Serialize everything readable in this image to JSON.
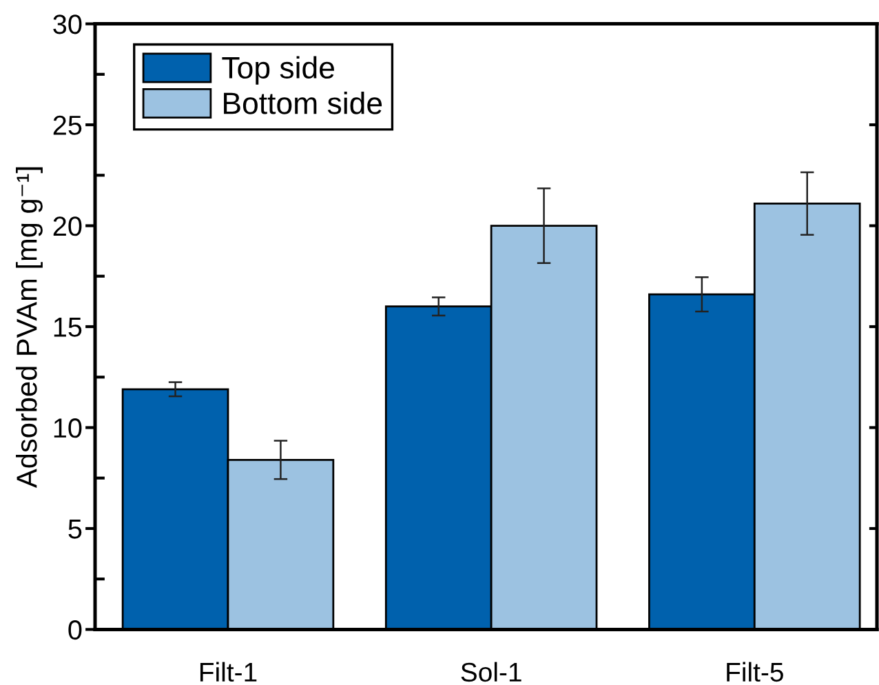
{
  "chart_data": {
    "type": "bar",
    "ylabel": "Adsorbed PVAm [mg g⁻¹]",
    "categories": [
      "Filt-1",
      "Sol-1",
      "Filt-5"
    ],
    "series": [
      {
        "name": "Top side",
        "color": "#0061ad",
        "values": [
          11.9,
          16.0,
          16.6
        ],
        "errors": [
          0.35,
          0.45,
          0.85
        ]
      },
      {
        "name": "Bottom side",
        "color": "#9cc2e1",
        "values": [
          8.4,
          20.0,
          21.1
        ],
        "errors": [
          0.95,
          1.85,
          1.55
        ]
      }
    ],
    "ylim": [
      0,
      30
    ],
    "yticks": [
      0,
      5,
      10,
      15,
      20,
      25,
      30
    ],
    "legend": "top left"
  }
}
